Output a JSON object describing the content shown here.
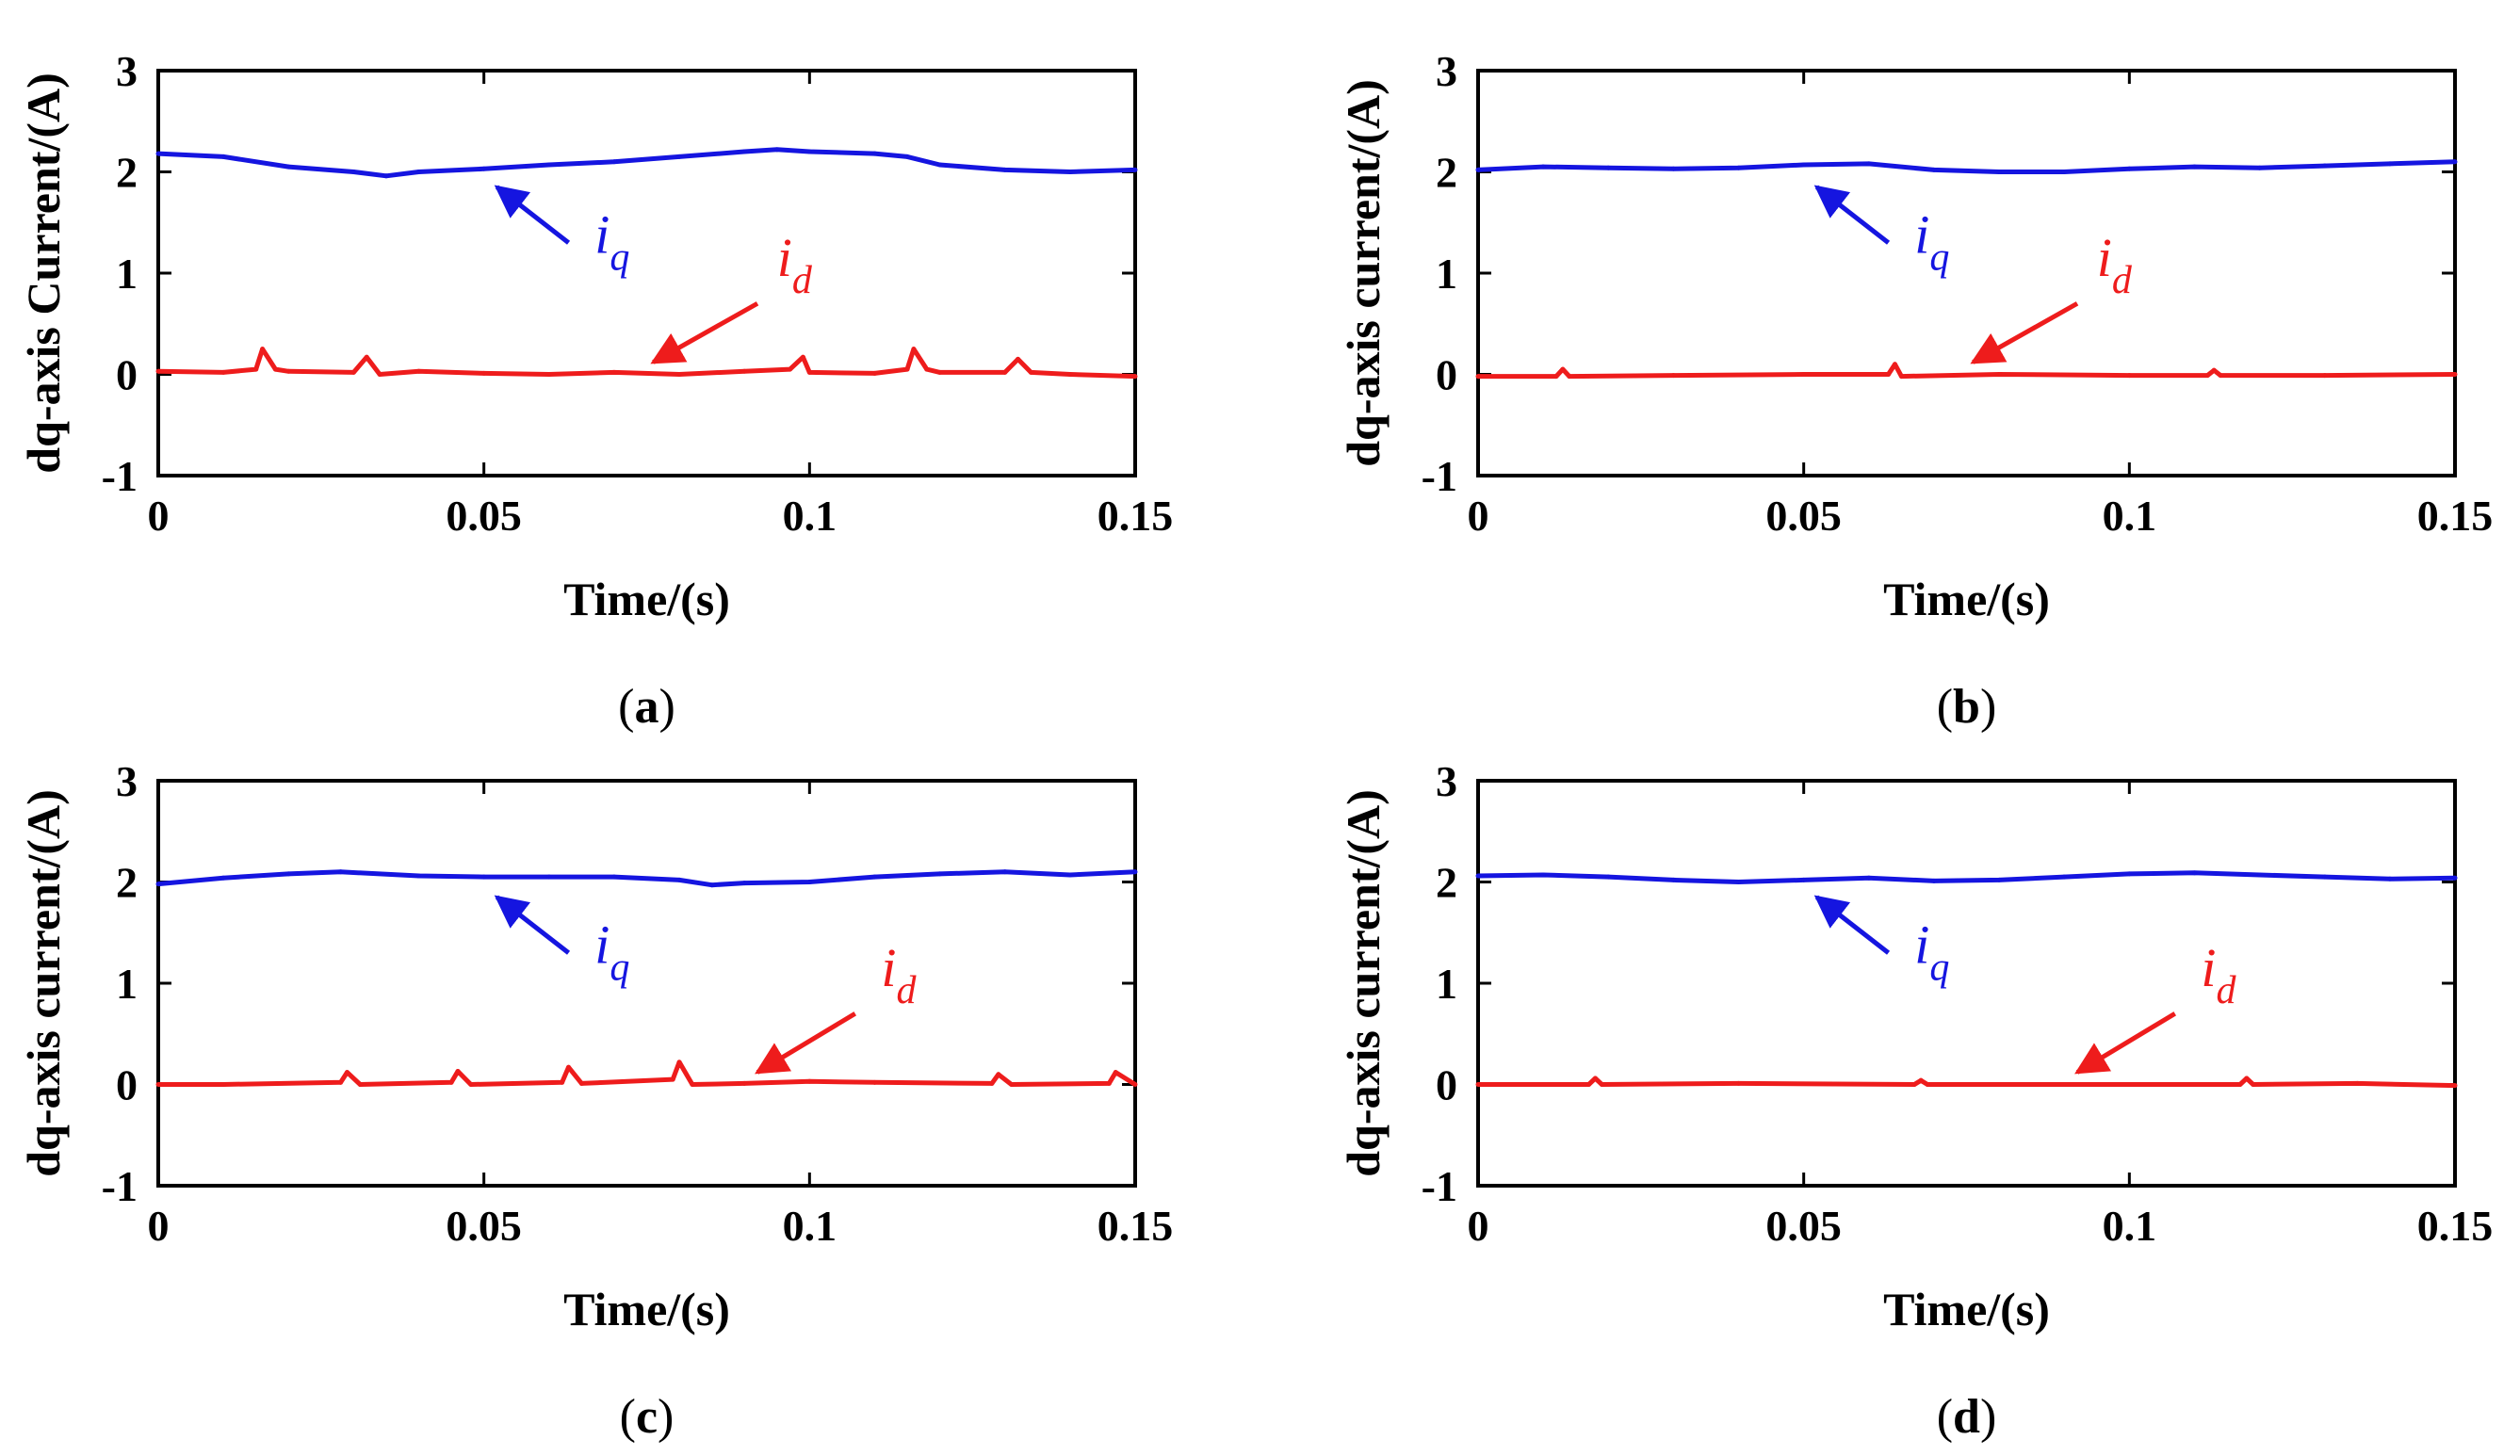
{
  "figure": {
    "colors": {
      "iq": "#1515e0",
      "id": "#ee1c1c",
      "axis": "#000000"
    },
    "panels": [
      {
        "panel_label_open": "(",
        "panel_label": "a",
        "panel_label_close": ")",
        "iq_annotation": {
          "main": "i",
          "sub": "q"
        },
        "id_annotation": {
          "main": "i",
          "sub": "d"
        }
      },
      {
        "panel_label_open": "(",
        "panel_label": "b",
        "panel_label_close": ")",
        "iq_annotation": {
          "main": "i",
          "sub": "q"
        },
        "id_annotation": {
          "main": "i",
          "sub": "d"
        }
      },
      {
        "panel_label_open": "(",
        "panel_label": "c",
        "panel_label_close": ")",
        "iq_annotation": {
          "main": "i",
          "sub": "q"
        },
        "id_annotation": {
          "main": "i",
          "sub": "d"
        }
      },
      {
        "panel_label_open": "(",
        "panel_label": "d",
        "panel_label_close": ")",
        "iq_annotation": {
          "main": "i",
          "sub": "q"
        },
        "id_annotation": {
          "main": "i",
          "sub": "d"
        }
      }
    ]
  },
  "chart_data": [
    {
      "type": "line",
      "title": "",
      "xlabel": "Time/(s)",
      "ylabel": "dq-axis Current/(A)",
      "xlim": [
        0,
        0.15
      ],
      "ylim": [
        -1,
        3
      ],
      "xticks": [
        0,
        0.05,
        0.1,
        0.15
      ],
      "xtick_labels": [
        "0",
        "0.05",
        "0.1",
        "0.15"
      ],
      "yticks": [
        -1,
        0,
        1,
        2,
        3
      ],
      "ytick_labels": [
        "-1",
        "0",
        "1",
        "2",
        "3"
      ],
      "series": [
        {
          "name": "iq",
          "x": [
            0,
            0.01,
            0.02,
            0.03,
            0.035,
            0.04,
            0.05,
            0.06,
            0.07,
            0.08,
            0.09,
            0.095,
            0.1,
            0.11,
            0.115,
            0.12,
            0.13,
            0.14,
            0.15
          ],
          "y": [
            2.18,
            2.15,
            2.05,
            2.0,
            1.96,
            2.0,
            2.03,
            2.07,
            2.1,
            2.15,
            2.2,
            2.22,
            2.2,
            2.18,
            2.15,
            2.07,
            2.02,
            2.0,
            2.02
          ]
        },
        {
          "name": "id",
          "x": [
            0,
            0.01,
            0.015,
            0.016,
            0.018,
            0.02,
            0.03,
            0.032,
            0.034,
            0.04,
            0.05,
            0.06,
            0.07,
            0.08,
            0.09,
            0.097,
            0.099,
            0.1,
            0.11,
            0.115,
            0.116,
            0.118,
            0.12,
            0.13,
            0.132,
            0.134,
            0.14,
            0.15
          ],
          "y": [
            0.03,
            0.02,
            0.05,
            0.25,
            0.05,
            0.03,
            0.02,
            0.17,
            0.0,
            0.03,
            0.01,
            0.0,
            0.02,
            0.0,
            0.03,
            0.05,
            0.17,
            0.02,
            0.01,
            0.05,
            0.25,
            0.05,
            0.02,
            0.02,
            0.15,
            0.02,
            0.0,
            -0.02
          ]
        }
      ],
      "annotations": [
        "iq",
        "id"
      ]
    },
    {
      "type": "line",
      "title": "",
      "xlabel": "Time/(s)",
      "ylabel": "dq-axis current/(A)",
      "xlim": [
        0,
        0.15
      ],
      "ylim": [
        -1,
        3
      ],
      "xticks": [
        0,
        0.05,
        0.1,
        0.15
      ],
      "xtick_labels": [
        "0",
        "0.05",
        "0.1",
        "0.15"
      ],
      "yticks": [
        -1,
        0,
        1,
        2,
        3
      ],
      "ytick_labels": [
        "-1",
        "0",
        "1",
        "2",
        "3"
      ],
      "series": [
        {
          "name": "iq",
          "x": [
            0,
            0.01,
            0.02,
            0.03,
            0.04,
            0.05,
            0.06,
            0.07,
            0.08,
            0.09,
            0.1,
            0.11,
            0.12,
            0.13,
            0.14,
            0.15
          ],
          "y": [
            2.02,
            2.05,
            2.04,
            2.03,
            2.04,
            2.07,
            2.08,
            2.02,
            2.0,
            2.0,
            2.03,
            2.05,
            2.04,
            2.06,
            2.08,
            2.1
          ]
        },
        {
          "name": "id",
          "x": [
            0,
            0.012,
            0.013,
            0.014,
            0.03,
            0.05,
            0.063,
            0.064,
            0.065,
            0.08,
            0.1,
            0.112,
            0.113,
            0.114,
            0.13,
            0.15
          ],
          "y": [
            -0.02,
            -0.02,
            0.05,
            -0.02,
            -0.01,
            0.0,
            0.0,
            0.1,
            -0.02,
            0.0,
            -0.01,
            -0.01,
            0.04,
            -0.01,
            -0.01,
            0.0
          ]
        }
      ],
      "annotations": [
        "iq",
        "id"
      ]
    },
    {
      "type": "line",
      "title": "",
      "xlabel": "Time/(s)",
      "ylabel": "dq-axis current/(A)",
      "xlim": [
        0,
        0.15
      ],
      "ylim": [
        -1,
        3
      ],
      "xticks": [
        0,
        0.05,
        0.1,
        0.15
      ],
      "xtick_labels": [
        "0",
        "0.05",
        "0.1",
        "0.15"
      ],
      "yticks": [
        -1,
        0,
        1,
        2,
        3
      ],
      "ytick_labels": [
        "-1",
        "0",
        "1",
        "2",
        "3"
      ],
      "series": [
        {
          "name": "iq",
          "x": [
            0,
            0.01,
            0.02,
            0.028,
            0.04,
            0.05,
            0.06,
            0.07,
            0.08,
            0.085,
            0.09,
            0.1,
            0.11,
            0.12,
            0.13,
            0.14,
            0.15
          ],
          "y": [
            1.98,
            2.04,
            2.08,
            2.1,
            2.06,
            2.05,
            2.05,
            2.05,
            2.02,
            1.97,
            1.99,
            2.0,
            2.05,
            2.08,
            2.1,
            2.07,
            2.1
          ]
        },
        {
          "name": "id",
          "x": [
            0,
            0.01,
            0.028,
            0.029,
            0.031,
            0.045,
            0.046,
            0.048,
            0.062,
            0.063,
            0.065,
            0.079,
            0.08,
            0.082,
            0.09,
            0.1,
            0.11,
            0.128,
            0.129,
            0.131,
            0.146,
            0.147,
            0.15
          ],
          "y": [
            0.0,
            0.0,
            0.02,
            0.12,
            0.0,
            0.02,
            0.13,
            0.0,
            0.02,
            0.17,
            0.01,
            0.05,
            0.22,
            0.0,
            0.01,
            0.03,
            0.02,
            0.01,
            0.1,
            0.0,
            0.01,
            0.12,
            0.0
          ]
        }
      ],
      "annotations": [
        "iq",
        "id"
      ]
    },
    {
      "type": "line",
      "title": "",
      "xlabel": "Time/(s)",
      "ylabel": "dq-axis current/(A)",
      "xlim": [
        0,
        0.15
      ],
      "ylim": [
        -1,
        3
      ],
      "xticks": [
        0,
        0.05,
        0.1,
        0.15
      ],
      "xtick_labels": [
        "0",
        "0.05",
        "0.1",
        "0.15"
      ],
      "yticks": [
        -1,
        0,
        1,
        2,
        3
      ],
      "ytick_labels": [
        "-1",
        "0",
        "1",
        "2",
        "3"
      ],
      "series": [
        {
          "name": "iq",
          "x": [
            0,
            0.01,
            0.02,
            0.03,
            0.04,
            0.05,
            0.06,
            0.07,
            0.08,
            0.09,
            0.1,
            0.11,
            0.12,
            0.13,
            0.14,
            0.15
          ],
          "y": [
            2.06,
            2.07,
            2.05,
            2.02,
            2.0,
            2.02,
            2.04,
            2.01,
            2.02,
            2.05,
            2.08,
            2.09,
            2.07,
            2.05,
            2.03,
            2.04
          ]
        },
        {
          "name": "id",
          "x": [
            0,
            0.017,
            0.018,
            0.019,
            0.04,
            0.067,
            0.068,
            0.069,
            0.09,
            0.117,
            0.118,
            0.119,
            0.135,
            0.15
          ],
          "y": [
            0.0,
            0.0,
            0.06,
            0.0,
            0.01,
            0.0,
            0.04,
            0.0,
            0.0,
            0.0,
            0.06,
            0.0,
            0.01,
            -0.01
          ]
        }
      ],
      "annotations": [
        "iq",
        "id"
      ]
    }
  ]
}
